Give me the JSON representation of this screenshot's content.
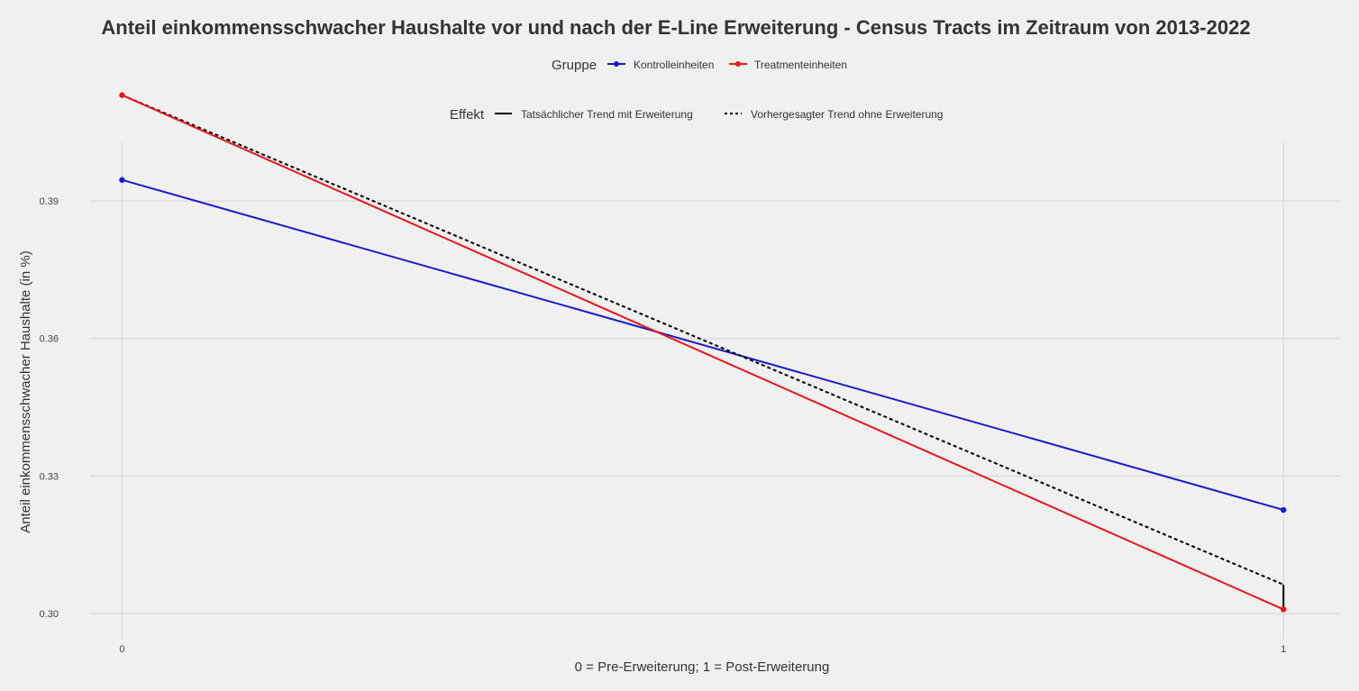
{
  "chart_data": {
    "type": "line",
    "title": "Anteil einkommensschwacher Haushalte vor und nach der E-Line Erweiterung - Census Tracts im Zeitraum von 2013-2022",
    "xlabel": "0 = Pre-Erweiterung; 1 = Post-Erweiterung",
    "ylabel": "Anteil einkommensschwacher Haushalte (in %)",
    "x": [
      0,
      1
    ],
    "xticks": [
      "0",
      "1"
    ],
    "yticks": [
      "0.30",
      "0.33",
      "0.36",
      "0.39"
    ],
    "ytick_values": [
      0.3,
      0.33,
      0.36,
      0.39
    ],
    "xlim": [
      -0.0275,
      1.0495
    ],
    "ylim": [
      0.2943,
      0.4028
    ],
    "grid": true,
    "legend_placement": "top",
    "legend_groups": [
      {
        "title": "Gruppe",
        "entries": [
          {
            "label": "Kontrolleinheiten",
            "color": "#1a1acd",
            "style": "solid-point"
          },
          {
            "label": "Treatmenteinheiten",
            "color": "#e8161b",
            "style": "solid-point"
          }
        ]
      },
      {
        "title": "Effekt",
        "entries": [
          {
            "label": "Tatsächlicher Trend mit Erweiterung",
            "color": "#000000",
            "style": "solid"
          },
          {
            "label": "Vorhergesagter Trend ohne Erweiterung",
            "color": "#000000",
            "style": "dashed"
          }
        ]
      }
    ],
    "series": [
      {
        "name": "Kontrolleinheiten",
        "color": "#1a1acd",
        "values": [
          0.3946,
          0.3226
        ],
        "dash": "solid",
        "points": true
      },
      {
        "name": "Treatmenteinheiten",
        "color": "#e8161b",
        "values": [
          0.4131,
          0.3009
        ],
        "dash": "solid",
        "points": true
      },
      {
        "name": "Vorhergesagter Trend ohne Erweiterung",
        "color": "#000000",
        "values": [
          0.4131,
          0.3063
        ],
        "dash": "dashed",
        "points": false
      },
      {
        "name": "Tatsächlicher Trend mit Erweiterung",
        "color": "#000000",
        "x": [
          1,
          1
        ],
        "values": [
          0.3063,
          0.3009
        ],
        "dash": "solid",
        "points": false
      }
    ]
  }
}
